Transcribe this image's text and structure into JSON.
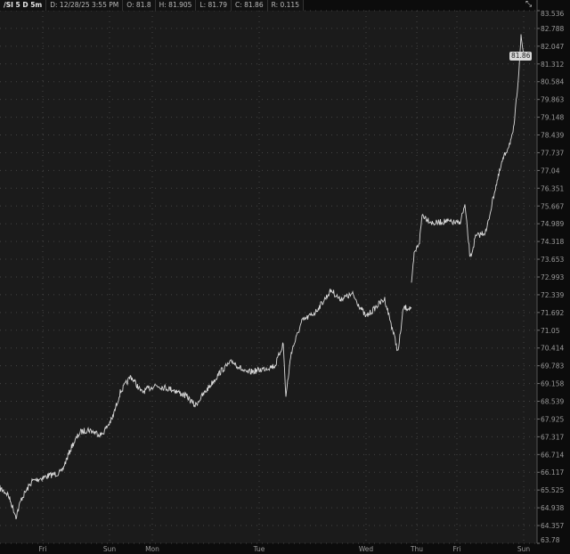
{
  "header": {
    "symbol": "/SI 5 D 5m",
    "date": "D: 12/28/25 3:55 PM",
    "open": "O: 81.8",
    "high": "H: 81.905",
    "low": "L: 81.79",
    "close": "C: 81.86",
    "range": "R: 0.115"
  },
  "last_price_badge": "81.86",
  "icons": {
    "zoom": "zoom-icon"
  },
  "colors": {
    "background": "#1b1b1b",
    "line": "#d9d9d9",
    "badge": "#d8d8d8"
  },
  "chart_data": {
    "type": "line",
    "title": "",
    "xlabel": "",
    "ylabel": "",
    "y_scale": "log",
    "ylim": [
      63.78,
      83.536
    ],
    "xlim": [
      0,
      201
    ],
    "grid": true,
    "y_ticks": [
      "83.536",
      "82.788",
      "82.047",
      "81.312",
      "80.584",
      "79.863",
      "79.148",
      "78.439",
      "77.737",
      "77.04",
      "76.351",
      "75.667",
      "74.989",
      "74.318",
      "73.653",
      "72.993",
      "72.339",
      "71.692",
      "71.05",
      "70.414",
      "69.783",
      "69.158",
      "68.539",
      "67.925",
      "67.317",
      "66.714",
      "66.117",
      "65.525",
      "64.938",
      "64.357",
      "63.78"
    ],
    "x_ticks": [
      {
        "x": 16,
        "label": "Fri"
      },
      {
        "x": 41,
        "label": "Sun"
      },
      {
        "x": 57,
        "label": "Mon"
      },
      {
        "x": 97,
        "label": "Tue"
      },
      {
        "x": 137,
        "label": "Wed"
      },
      {
        "x": 156,
        "label": "Thu"
      },
      {
        "x": 171,
        "label": "Fri"
      },
      {
        "x": 196,
        "label": "Sun"
      }
    ],
    "series": [
      {
        "points": [
          [
            0,
            65.58
          ],
          [
            3,
            65.38
          ],
          [
            6,
            64.65
          ],
          [
            8,
            65.23
          ],
          [
            12,
            65.82
          ],
          [
            17,
            65.97
          ],
          [
            23,
            66.12
          ],
          [
            27,
            67.02
          ],
          [
            30,
            67.47
          ],
          [
            33,
            67.56
          ],
          [
            38,
            67.38
          ],
          [
            42,
            67.93
          ],
          [
            45,
            68.85
          ],
          [
            49,
            69.41
          ],
          [
            53,
            68.85
          ],
          [
            58,
            69.1
          ],
          [
            65,
            68.94
          ],
          [
            70,
            68.7
          ],
          [
            73,
            68.39
          ],
          [
            78,
            69.01
          ],
          [
            83,
            69.63
          ],
          [
            87,
            69.94
          ],
          [
            92,
            69.53
          ],
          [
            97,
            69.63
          ],
          [
            103,
            69.79
          ],
          [
            106,
            70.58
          ],
          [
            107,
            68.7
          ],
          [
            109,
            70.26
          ],
          [
            113,
            71.37
          ],
          [
            118,
            71.7
          ],
          [
            124,
            72.51
          ],
          [
            127,
            72.18
          ],
          [
            132,
            72.35
          ],
          [
            137,
            71.53
          ],
          [
            142,
            72.02
          ],
          [
            144,
            72.18
          ],
          [
            147,
            71.05
          ],
          [
            149,
            70.26
          ],
          [
            151,
            71.86
          ],
          [
            154,
            71.86
          ]
        ]
      },
      {
        "points": [
          [
            154,
            72.67
          ],
          [
            155,
            73.83
          ],
          [
            157,
            74.32
          ],
          [
            158,
            75.34
          ],
          [
            162,
            75.0
          ],
          [
            167,
            75.08
          ],
          [
            172,
            75.0
          ],
          [
            174,
            75.68
          ],
          [
            176,
            73.66
          ],
          [
            178,
            74.49
          ],
          [
            182,
            74.7
          ],
          [
            185,
            76.19
          ],
          [
            188,
            77.4
          ],
          [
            192,
            78.45
          ],
          [
            193,
            79.51
          ],
          [
            194,
            80.77
          ],
          [
            195,
            82.43
          ],
          [
            196,
            81.69
          ]
        ]
      }
    ],
    "last": 81.86
  }
}
